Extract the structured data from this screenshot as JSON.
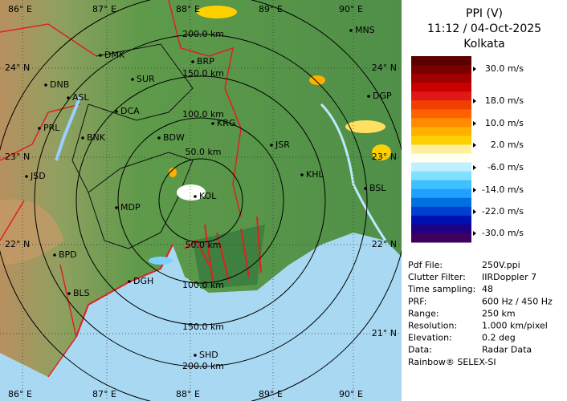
{
  "header": {
    "title": "PPI (V)",
    "time": "11:12 / 04-Oct-2025",
    "site": "Kolkata"
  },
  "legend": {
    "labels": [
      "30.0 m/s",
      "18.0 m/s",
      "10.0 m/s",
      "2.0 m/s",
      "-6.0 m/s",
      "-14.0 m/s",
      "-22.0 m/s",
      "-30.0 m/s"
    ]
  },
  "info": {
    "rows": [
      [
        "Pdf File:",
        "250V.ppi"
      ],
      [
        "Clutter Filter:",
        "IIRDoppler 7"
      ],
      [
        "Time sampling:",
        "48"
      ],
      [
        "PRF:",
        "600 Hz / 450 Hz"
      ],
      [
        "Range:",
        "250 km"
      ],
      [
        "Resolution:",
        "1.000 km/pixel"
      ],
      [
        "Elevation:",
        "0.2 deg"
      ],
      [
        "Data:",
        "Radar Data"
      ]
    ],
    "footer": "Rainbow® SELEX-SI"
  },
  "map": {
    "lon_labels_top": [
      "86° E",
      "87° E",
      "88° E",
      "89° E",
      "90° E"
    ],
    "lon_labels_bottom": [
      "86° E",
      "87° E",
      "88° E",
      "89° E",
      "90° E"
    ],
    "lat_labels_left": [
      "24° N",
      "23° N",
      "22° N"
    ],
    "lat_labels_right": [
      "24° N",
      "23° N",
      "22° N",
      "21° N"
    ],
    "range_labels": [
      "200.0 km",
      "150.0 km",
      "100.0 km",
      "50.0 km",
      "50.0 km",
      "100.0 km",
      "150.0 km",
      "200.0 km"
    ],
    "cities": [
      "MNS",
      "DMK",
      "BRP",
      "DNB",
      "SUR",
      "ASL",
      "DCA",
      "DGP",
      "KRG",
      "PRL",
      "BNK",
      "BDW",
      "JSR",
      "KHL",
      "JSD",
      "BSL",
      "KOL",
      "MDP",
      "BPD",
      "DGH",
      "BLS",
      "SHD"
    ]
  }
}
